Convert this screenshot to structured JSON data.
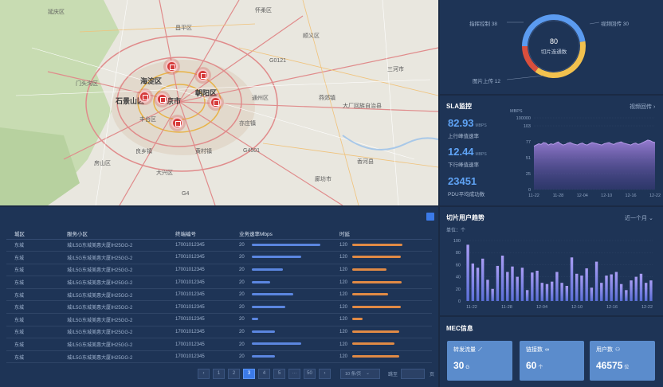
{
  "map": {
    "labels_big": [
      "海淀区",
      "石景山区",
      "北京市",
      "朝阳区"
    ],
    "labels": [
      "门头沟区",
      "丰台区",
      "通州区",
      "大兴区",
      "房山区",
      "昌平区",
      "顺义区",
      "三河市",
      "廊坊市",
      "燕郊镇",
      "良乡镇",
      "黄村镇",
      "亦庄镇",
      "大厂回族自治县",
      "香河县",
      "G0121",
      "G4501",
      "G4",
      "延庆区",
      "怀柔区"
    ]
  },
  "donut": {
    "center_value": "80",
    "center_label": "切片连通数",
    "legend": [
      {
        "label": "指挥控制 38",
        "color": "#5b9bf0"
      },
      {
        "label": "视频回传 30",
        "color": "#f2c14e"
      },
      {
        "label": "图片上传 12",
        "color": "#d94f3d"
      }
    ],
    "chart_data": {
      "type": "pie",
      "categories": [
        "指挥控制",
        "视频回传",
        "图片上传"
      ],
      "values": [
        38,
        30,
        12
      ]
    }
  },
  "sla": {
    "title": "SLA监控",
    "link": "视频回传 ›",
    "uplink_value": "82.93",
    "uplink_unit": "MBPS",
    "uplink_label": "上行峰值速率",
    "downlink_value": "12.44",
    "downlink_unit": "MBPS",
    "downlink_label": "下行峰值速率",
    "pdu_value": "23451",
    "pdu_label": "PDU平均成功数",
    "chart_data": {
      "type": "area",
      "unit": "MBPS",
      "y_ticks": [
        "100000",
        "103",
        "77",
        "51",
        "25",
        "0"
      ],
      "x_ticks": [
        "11-22",
        "11-28",
        "12-04",
        "12-10",
        "12-16",
        "12-22"
      ],
      "values": [
        70,
        72,
        74,
        73,
        76,
        75,
        72,
        74,
        73,
        75,
        77,
        74,
        72,
        73,
        75,
        76,
        74,
        73,
        72,
        74,
        75,
        73,
        72,
        74,
        76,
        75,
        74,
        73,
        72,
        74,
        75,
        76,
        74,
        73,
        75,
        76,
        77,
        75,
        74,
        73,
        72,
        74,
        75,
        73,
        74,
        76,
        78,
        80,
        79,
        77,
        76
      ]
    }
  },
  "table": {
    "headers": [
      "城区",
      "服务小区",
      "终端编号",
      "业务速率Mbps",
      "时延"
    ],
    "rows": [
      {
        "district": "东城",
        "cell": "城/L5G东城美惠大厦IH25GG-2",
        "terminal": "17001012345",
        "rate": "20",
        "rate_frac": 0.88,
        "latency": "120",
        "lat_frac": 0.68
      },
      {
        "district": "东城",
        "cell": "城/L5G东城美惠大厦IH25GG-2",
        "terminal": "17001012345",
        "rate": "20",
        "rate_frac": 0.63,
        "latency": "120",
        "lat_frac": 0.66
      },
      {
        "district": "东城",
        "cell": "城/L5G东城美惠大厦IH25GG-2",
        "terminal": "17001012345",
        "rate": "20",
        "rate_frac": 0.4,
        "latency": "120",
        "lat_frac": 0.47
      },
      {
        "district": "东城",
        "cell": "城/L5G东城美惠大厦IH25GG-2",
        "terminal": "17001012345",
        "rate": "20",
        "rate_frac": 0.23,
        "latency": "120",
        "lat_frac": 0.67
      },
      {
        "district": "东城",
        "cell": "城/L5G东城美惠大厦IH25GG-2",
        "terminal": "17001012345",
        "rate": "20",
        "rate_frac": 0.53,
        "latency": "120",
        "lat_frac": 0.49
      },
      {
        "district": "东城",
        "cell": "城/L5G东城美惠大厦IH25GG-2",
        "terminal": "17001012345",
        "rate": "20",
        "rate_frac": 0.43,
        "latency": "120",
        "lat_frac": 0.66
      },
      {
        "district": "东城",
        "cell": "城/L5G东城美惠大厦IH25GG-2",
        "terminal": "17001012345",
        "rate": "20",
        "rate_frac": 0.08,
        "latency": "120",
        "lat_frac": 0.14
      },
      {
        "district": "东城",
        "cell": "城/L5G东城美惠大厦IH25GG-2",
        "terminal": "17001012345",
        "rate": "20",
        "rate_frac": 0.3,
        "latency": "120",
        "lat_frac": 0.64
      },
      {
        "district": "东城",
        "cell": "城/L5G东城美惠大厦IH25GG-2",
        "terminal": "17001012345",
        "rate": "20",
        "rate_frac": 0.63,
        "latency": "120",
        "lat_frac": 0.58
      },
      {
        "district": "东城",
        "cell": "城/L5G东城美惠大厦IH25GG-2",
        "terminal": "17001012345",
        "rate": "20",
        "rate_frac": 0.3,
        "latency": "120",
        "lat_frac": 0.64
      }
    ],
    "pager": {
      "prev": "‹",
      "pages": [
        "1",
        "2",
        "3",
        "4",
        "5",
        "···",
        "50"
      ],
      "active_index": 2,
      "next": "›",
      "page_size": "10 条/页",
      "jump_label": "跳至",
      "page_suffix": "页"
    }
  },
  "trend": {
    "title": "切片用户趋势",
    "range": "近一个月",
    "unit": "单位：个",
    "chart_data": {
      "type": "bar",
      "y_ticks": [
        "100",
        "80",
        "60",
        "40",
        "20",
        "0"
      ],
      "x_ticks": [
        "11-22",
        "11-28",
        "12-04",
        "12-10",
        "12-16",
        "12-22"
      ],
      "ylim": [
        0,
        100
      ],
      "values": [
        93,
        62,
        55,
        70,
        35,
        20,
        58,
        75,
        48,
        57,
        40,
        55,
        18,
        47,
        50,
        30,
        28,
        32,
        48,
        30,
        25,
        72,
        45,
        42,
        54,
        22,
        65,
        30,
        42,
        44,
        48,
        28,
        18,
        34,
        40,
        45,
        30,
        34
      ]
    }
  },
  "mec": {
    "title": "MEC信息",
    "cards": [
      {
        "label": "转发流量",
        "icon": "📈",
        "value": "30",
        "unit": "G"
      },
      {
        "label": "链接数",
        "icon": "🔗",
        "value": "60",
        "unit": "个"
      },
      {
        "label": "用户数",
        "icon": "👤",
        "value": "46575",
        "unit": "位"
      }
    ]
  }
}
